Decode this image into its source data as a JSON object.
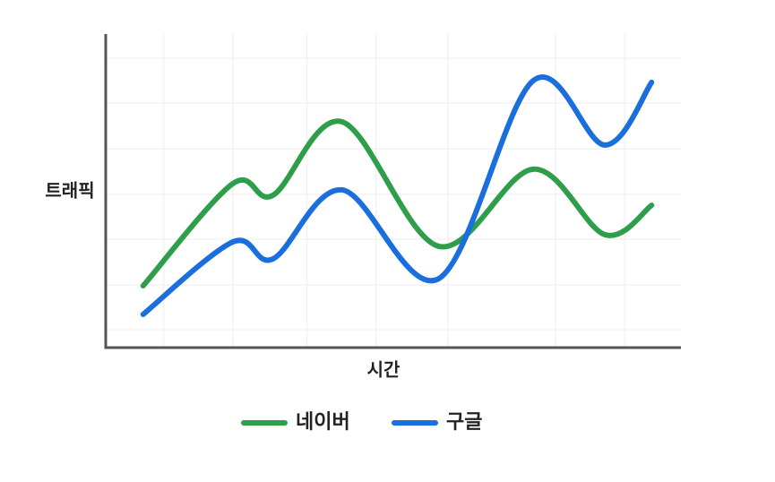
{
  "chart_data": {
    "type": "line",
    "x_label": "시간",
    "y_label": "트래픽",
    "x": [
      6.5,
      22.1,
      29.1,
      41.1,
      57.9,
      74.3,
      86.8,
      94.9
    ],
    "series": [
      {
        "name": "네이버",
        "color": "#2e9e4a",
        "values": [
          19.7,
          52.3,
          48.6,
          72,
          32.3,
          56.9,
          36,
          45.4
        ]
      },
      {
        "name": "구글",
        "color": "#1a6fdc",
        "values": [
          10.6,
          33.7,
          28.3,
          50.3,
          22,
          85.1,
          64.6,
          84.6
        ]
      }
    ],
    "xlim": [
      0,
      100
    ],
    "ylim": [
      0,
      100
    ],
    "xticks": [
      10.1,
      22.1,
      35,
      47,
      59.5,
      78.2,
      90.2
    ],
    "yticks": [
      5.7,
      20,
      34.6,
      48.9,
      63.4,
      78,
      92.3
    ],
    "grid": true,
    "legend": "bottom"
  }
}
